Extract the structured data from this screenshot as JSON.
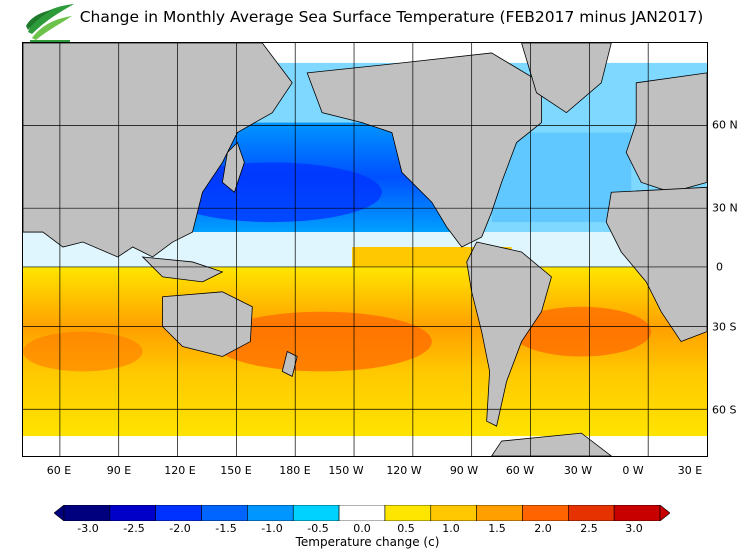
{
  "header": {
    "title": "Change in Monthly Average Sea Surface Temperature (FEB2017 minus JAN2017)"
  },
  "map": {
    "type": "global sea surface temperature change map",
    "land_color": "#c0c0c0",
    "border_color": "#000000",
    "lon_labels": [
      "60 E",
      "90 E",
      "120 E",
      "150 E",
      "180 E",
      "150 W",
      "120 W",
      "90 W",
      "60 W",
      "30 W",
      "0 W",
      "30 E"
    ],
    "lat_labels": [
      "60 N",
      "30 N",
      "0",
      "30 S",
      "60 S"
    ]
  },
  "colorbar": {
    "title": "Temperature change  (c)",
    "ticks": [
      "-3.0",
      "-2.5",
      "-2.0",
      "-1.5",
      "-1.0",
      "-0.5",
      "0.0",
      "0.5",
      "1.0",
      "1.5",
      "2.0",
      "2.5",
      "3.0"
    ],
    "colors": [
      "#00007f",
      "#0000c8",
      "#0032ff",
      "#0064ff",
      "#0096ff",
      "#00d2ff",
      "#ffffff",
      "#ffe600",
      "#ffc800",
      "#ffa000",
      "#ff6400",
      "#e63200",
      "#c80000"
    ]
  }
}
